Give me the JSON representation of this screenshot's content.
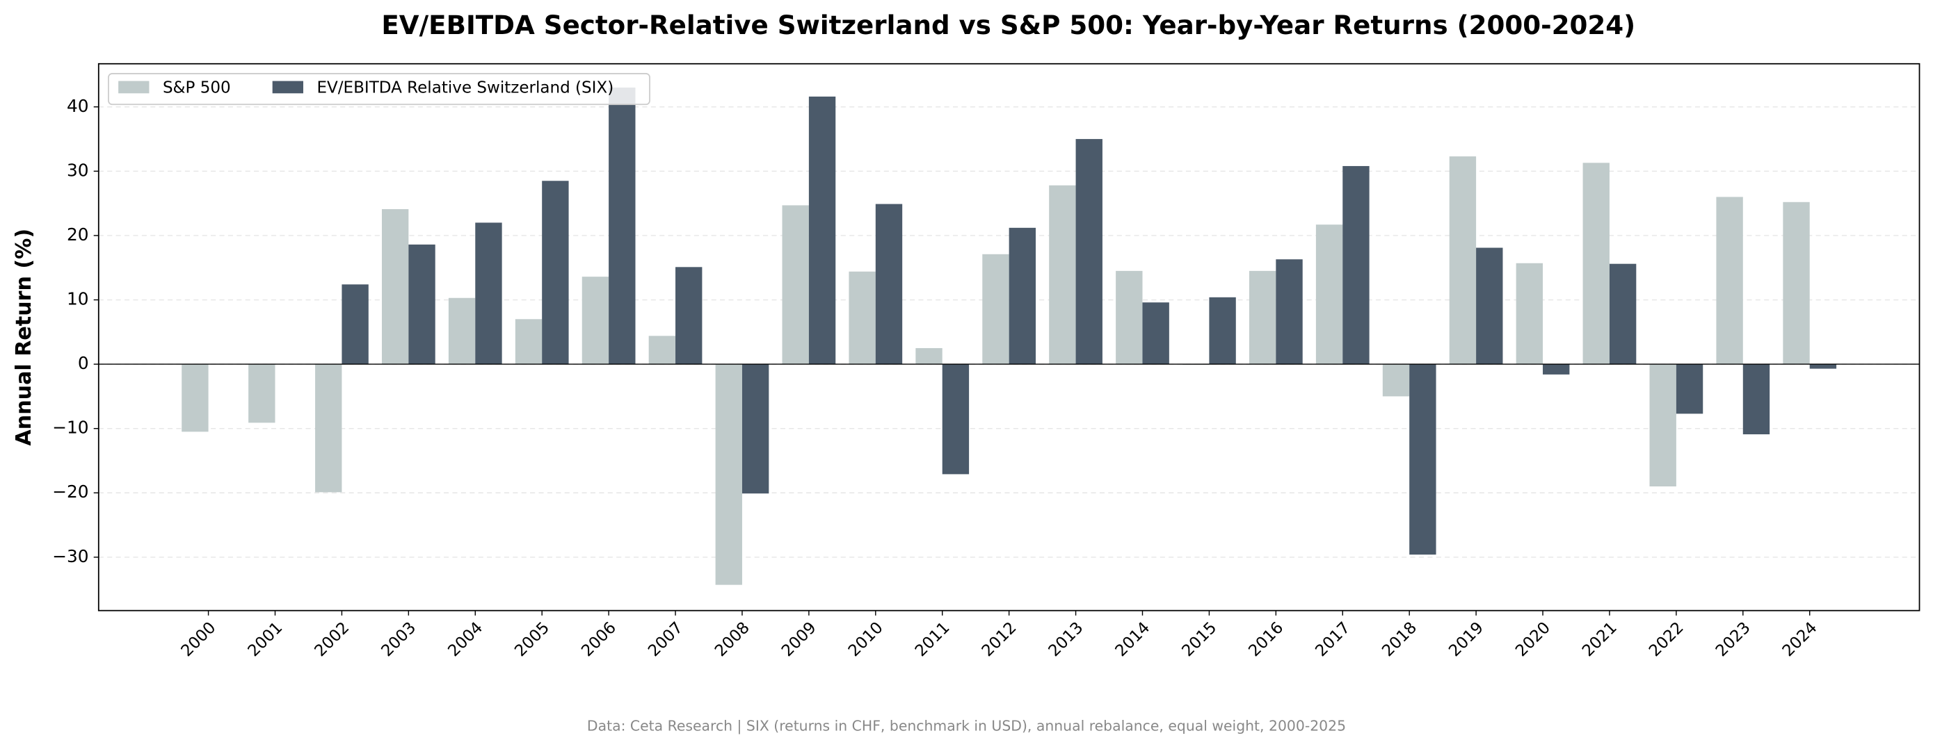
{
  "chart_data": {
    "type": "bar",
    "title": "EV/EBITDA Sector-Relative Switzerland vs S&P 500: Year-by-Year Returns (2000-2024)",
    "y_label": "Annual Return (%)",
    "footnote": "Data: Ceta Research | SIX (returns in CHF, benchmark in USD), annual rebalance, equal weight, 2000-2025",
    "categories": [
      "2000",
      "2001",
      "2002",
      "2003",
      "2004",
      "2005",
      "2006",
      "2007",
      "2008",
      "2009",
      "2010",
      "2011",
      "2012",
      "2013",
      "2014",
      "2015",
      "2016",
      "2017",
      "2018",
      "2019",
      "2020",
      "2021",
      "2022",
      "2023",
      "2024"
    ],
    "series": [
      {
        "name": "S&P 500",
        "color": "#c0cbcb",
        "values": [
          -10.5,
          -9.1,
          -19.9,
          24.1,
          10.3,
          7.0,
          13.6,
          4.4,
          -34.3,
          24.7,
          14.4,
          2.5,
          17.1,
          27.8,
          14.5,
          -0.1,
          14.5,
          21.7,
          -5.0,
          32.3,
          15.7,
          31.3,
          -19.0,
          26.0,
          25.2
        ]
      },
      {
        "name": "EV/EBITDA Relative Switzerland (SIX)",
        "color": "#4b5a6a",
        "values": [
          null,
          null,
          12.4,
          18.6,
          22.0,
          28.5,
          43.0,
          15.1,
          -20.1,
          41.6,
          24.9,
          -17.1,
          21.2,
          35.0,
          9.6,
          10.4,
          16.3,
          30.8,
          -29.6,
          18.1,
          -1.6,
          15.6,
          -7.7,
          -10.9,
          -0.7
        ]
      }
    ],
    "ylim": [
      -38.3,
      46.7
    ],
    "yticks": [
      {
        "value": -30,
        "label": "−30"
      },
      {
        "value": -20,
        "label": "−20"
      },
      {
        "value": -10,
        "label": "−10"
      },
      0,
      10,
      20,
      30,
      40
    ],
    "grid": true,
    "legend": "upper left"
  }
}
